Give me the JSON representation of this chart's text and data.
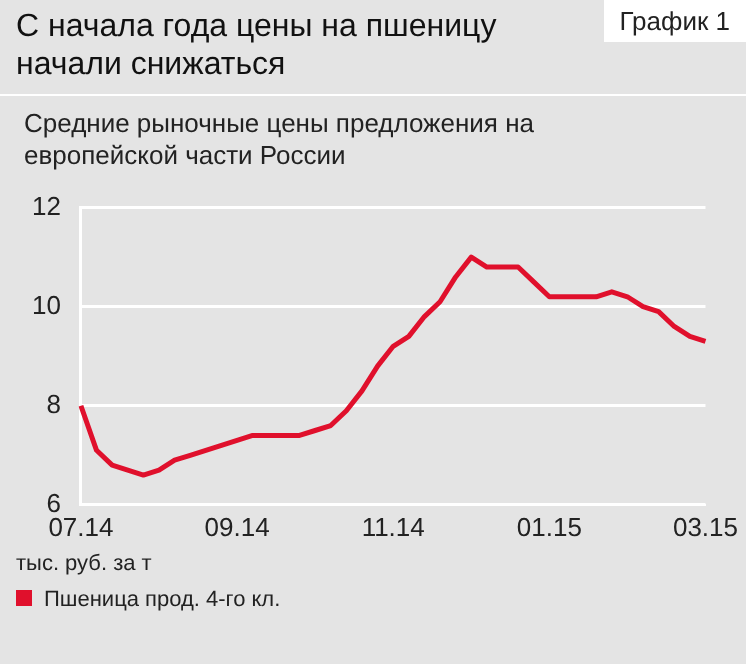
{
  "chart_data": {
    "type": "line",
    "title": "С начала года цены на пшеницу начали снижаться",
    "subtitle": "Средние рыночные цены предложения на европейской части России",
    "ylabel": "тыс. руб. за т",
    "annotations": [
      "График 1"
    ],
    "categories": [
      "07.14",
      null,
      null,
      null,
      null,
      null,
      null,
      null,
      null,
      null,
      "09.14",
      null,
      null,
      null,
      null,
      null,
      null,
      null,
      null,
      null,
      "11.14",
      null,
      null,
      null,
      null,
      null,
      null,
      null,
      null,
      null,
      "01.15",
      null,
      null,
      null,
      null,
      null,
      null,
      null,
      null,
      null,
      "03.15"
    ],
    "series": [
      {
        "name": "Пшеница прод. 4-го кл.",
        "color": "#e0102c",
        "values": [
          8.0,
          7.1,
          6.8,
          6.7,
          6.6,
          6.7,
          6.9,
          7.0,
          7.1,
          7.2,
          7.3,
          7.4,
          7.4,
          7.4,
          7.4,
          7.5,
          7.6,
          7.9,
          8.3,
          8.8,
          9.2,
          9.4,
          9.8,
          10.1,
          10.6,
          11.0,
          10.8,
          10.8,
          10.8,
          10.5,
          10.2,
          10.2,
          10.2,
          10.2,
          10.3,
          10.2,
          10.0,
          9.9,
          9.6,
          9.4,
          9.3
        ]
      }
    ],
    "ylim": [
      6,
      12
    ],
    "yticks": [
      6,
      8,
      10,
      12
    ],
    "grid": "y",
    "legend": "bottom",
    "marker": "none",
    "line_style": "solid"
  }
}
